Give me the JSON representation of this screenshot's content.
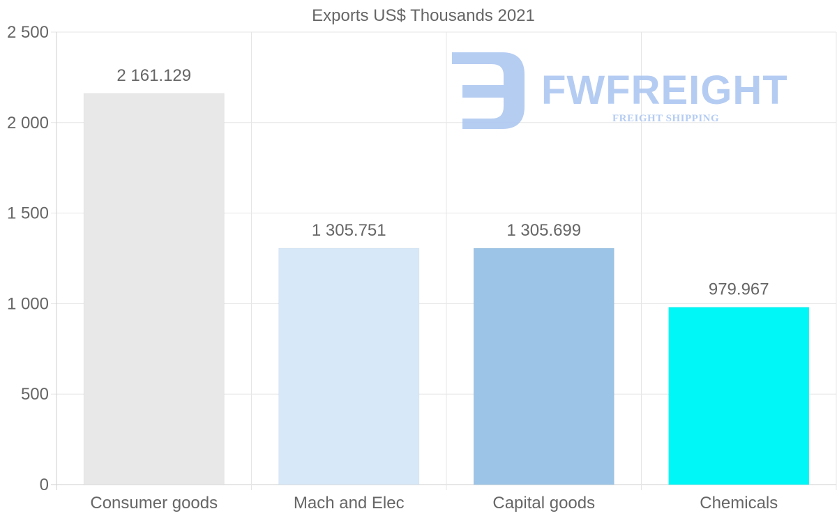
{
  "chart_data": {
    "type": "bar",
    "title": "Exports US$ Thousands 2021",
    "xlabel": "",
    "ylabel": "",
    "categories": [
      "Consumer goods",
      "Mach and Elec",
      "Capital goods",
      "Chemicals"
    ],
    "values": [
      2161.129,
      1305.751,
      1305.699,
      979.967
    ],
    "value_labels": [
      "2 161.129",
      "1 305.751",
      "1 305.699",
      "979.967"
    ],
    "bar_colors": [
      "#e8e8e8",
      "#d7e8f9",
      "#9cc4e6",
      "#00f7f7"
    ],
    "ylim": [
      0,
      2500
    ],
    "yticks": [
      0,
      500,
      1000,
      1500,
      2000,
      2500
    ],
    "ytick_labels": [
      "0",
      "500",
      "1 000",
      "1 500",
      "2 000",
      "2 500"
    ],
    "grid": true,
    "legend": "none"
  },
  "watermark": {
    "brand": "FWFREIGHT",
    "tagline": "FREIGHT SHIPPING",
    "color": "#a9c4f0"
  }
}
